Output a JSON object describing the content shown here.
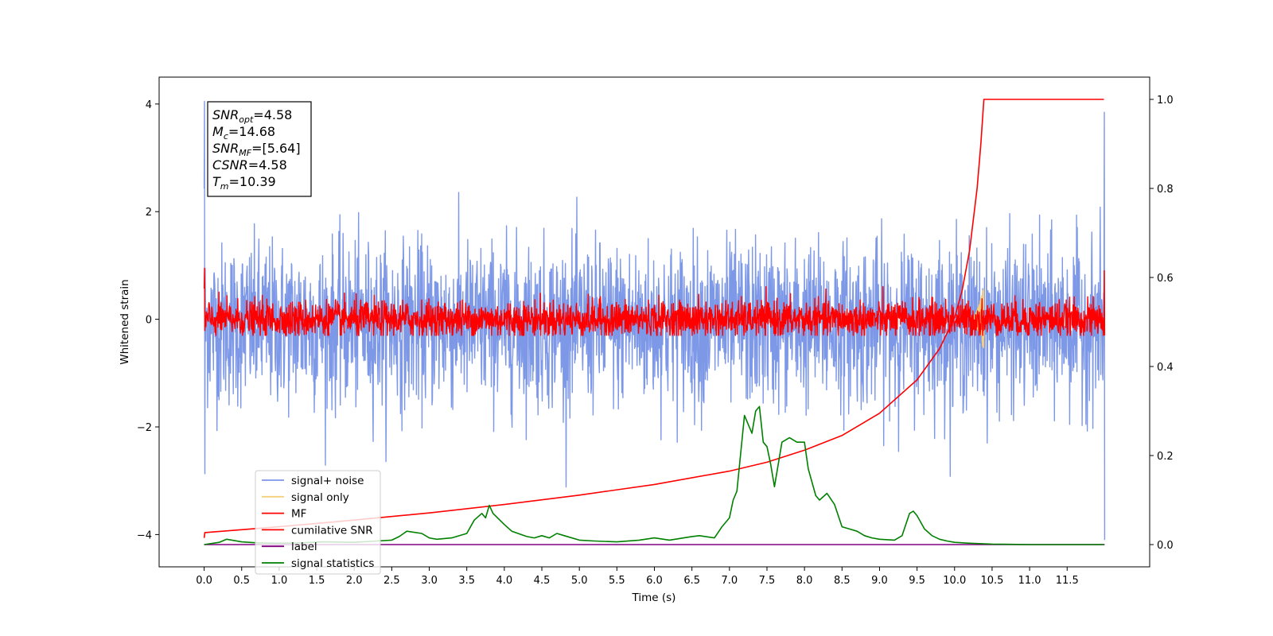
{
  "chart_data": {
    "type": "line",
    "xlabel": "Time (s)",
    "ylabel_left": "Whitened strain",
    "ylabel_right": "",
    "xlim": [
      -0.6,
      12.6
    ],
    "ylim_left": [
      -4.6,
      4.5
    ],
    "ylim_right": [
      -0.05,
      1.05
    ],
    "x_ticks": [
      0.0,
      0.5,
      1.0,
      1.5,
      2.0,
      2.5,
      3.0,
      3.5,
      4.0,
      4.5,
      5.0,
      5.5,
      6.0,
      6.5,
      7.0,
      7.5,
      8.0,
      8.5,
      9.0,
      9.5,
      10.0,
      10.5,
      11.0,
      11.5
    ],
    "x_tick_labels": [
      "0.0",
      "0.5",
      "1.0",
      "1.5",
      "2.0",
      "2.5",
      "3.0",
      "3.5",
      "4.0",
      "4.5",
      "5.0",
      "5.5",
      "6.0",
      "6.5",
      "7.0",
      "7.5",
      "8.0",
      "8.5",
      "9.0",
      "9.5",
      "10.0",
      "10.5",
      "11.0",
      "11.5"
    ],
    "y_left_ticks": [
      4,
      2,
      0,
      -2,
      -4
    ],
    "y_left_tick_labels": [
      "4",
      "2",
      "0",
      "−2",
      "−4"
    ],
    "y_right_ticks": [
      1.0,
      0.8,
      0.6,
      0.4,
      0.2,
      0.0
    ],
    "y_right_tick_labels": [
      "1.0",
      "0.8",
      "0.6",
      "0.4",
      "0.2",
      "0.0"
    ],
    "grid": false,
    "legend_position": "lower-left",
    "annotation_position": "top-left",
    "annotation": [
      {
        "base": "SNR",
        "sub": "opt",
        "value": "=4.58"
      },
      {
        "base": "M",
        "sub": "c",
        "value": "=14.68"
      },
      {
        "base": "SNR",
        "sub": "MF",
        "value": "=[5.64]"
      },
      {
        "base": "CSNR",
        "sub": "",
        "value": "=4.58"
      },
      {
        "base": "T",
        "sub": "m",
        "value": "=10.39"
      }
    ],
    "series": [
      {
        "name": "signal+ noise",
        "axis": "left",
        "color": "#7b96e8",
        "kind": "noise",
        "x_range": [
          0.0,
          12.0
        ],
        "center": -0.1,
        "std": 0.75,
        "max": 4.05,
        "min": -4.1
      },
      {
        "name": "signal only",
        "axis": "left",
        "color": "#f5cf7a",
        "kind": "chirp",
        "x_range": [
          10.2,
          10.39
        ],
        "amplitude_peak": 0.6,
        "x_peak": 10.38
      },
      {
        "name": "MF",
        "axis": "left",
        "color": "#ff0000",
        "kind": "noise",
        "x_range": [
          0.0,
          12.0
        ],
        "center": 0.0,
        "std": 0.17,
        "max": 0.95,
        "min": -0.3
      },
      {
        "name": "cumilative SNR",
        "axis": "right",
        "color": "#ff0000",
        "x": [
          0.0,
          0.01,
          1.0,
          2.0,
          3.0,
          4.0,
          5.0,
          6.0,
          7.0,
          7.5,
          8.0,
          8.5,
          9.0,
          9.5,
          9.8,
          10.0,
          10.1,
          10.2,
          10.3,
          10.35,
          10.39,
          11.5,
          11.99
        ],
        "y": [
          0.015,
          0.027,
          0.04,
          0.055,
          0.071,
          0.09,
          0.111,
          0.135,
          0.165,
          0.185,
          0.212,
          0.245,
          0.295,
          0.37,
          0.44,
          0.51,
          0.57,
          0.66,
          0.8,
          0.9,
          1.0,
          1.0,
          1.0
        ]
      },
      {
        "name": "label",
        "axis": "right",
        "color": "#800080",
        "x": [
          0.0,
          12.0
        ],
        "y": [
          0.0,
          0.0
        ]
      },
      {
        "name": "signal statistics",
        "axis": "right",
        "color": "#008000",
        "x": [
          0.0,
          0.2,
          0.3,
          0.5,
          0.7,
          1.0,
          1.3,
          1.6,
          2.0,
          2.3,
          2.5,
          2.6,
          2.7,
          2.9,
          3.0,
          3.1,
          3.3,
          3.5,
          3.6,
          3.7,
          3.75,
          3.8,
          3.85,
          4.0,
          4.1,
          4.3,
          4.4,
          4.5,
          4.6,
          4.7,
          4.8,
          5.0,
          5.2,
          5.5,
          5.8,
          6.0,
          6.2,
          6.5,
          6.6,
          6.8,
          6.9,
          7.0,
          7.05,
          7.1,
          7.2,
          7.3,
          7.35,
          7.4,
          7.45,
          7.5,
          7.55,
          7.6,
          7.7,
          7.8,
          7.9,
          8.0,
          8.05,
          8.15,
          8.2,
          8.3,
          8.4,
          8.5,
          8.6,
          8.7,
          8.8,
          8.9,
          9.0,
          9.2,
          9.3,
          9.4,
          9.45,
          9.5,
          9.6,
          9.7,
          9.8,
          9.9,
          10.0,
          10.2,
          10.5,
          11.0,
          11.5,
          11.99
        ],
        "y": [
          0.0,
          0.005,
          0.012,
          0.006,
          0.004,
          0.003,
          0.004,
          0.006,
          0.005,
          0.008,
          0.01,
          0.018,
          0.03,
          0.025,
          0.015,
          0.012,
          0.015,
          0.025,
          0.055,
          0.07,
          0.06,
          0.088,
          0.07,
          0.045,
          0.03,
          0.018,
          0.015,
          0.02,
          0.015,
          0.025,
          0.02,
          0.01,
          0.008,
          0.006,
          0.01,
          0.015,
          0.01,
          0.018,
          0.02,
          0.015,
          0.04,
          0.06,
          0.1,
          0.12,
          0.29,
          0.25,
          0.3,
          0.31,
          0.23,
          0.22,
          0.18,
          0.13,
          0.23,
          0.24,
          0.23,
          0.23,
          0.17,
          0.11,
          0.1,
          0.115,
          0.09,
          0.04,
          0.035,
          0.03,
          0.02,
          0.015,
          0.012,
          0.01,
          0.02,
          0.07,
          0.075,
          0.065,
          0.035,
          0.02,
          0.012,
          0.008,
          0.005,
          0.003,
          0.001,
          0.0,
          0.0,
          0.0
        ]
      }
    ]
  }
}
